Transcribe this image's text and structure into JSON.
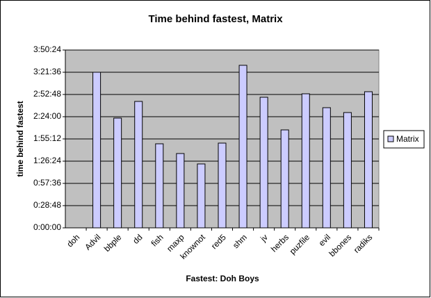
{
  "chart_data": {
    "type": "bar",
    "title": "Time behind fastest, Matrix",
    "x_label": "Fastest: Doh Boys",
    "y_label": "time behind fastest",
    "categories": [
      "doh",
      "Advil",
      "bbple",
      "dd",
      "fish",
      "maxp",
      "knownot",
      "red5",
      "shm",
      "jv",
      "herbs",
      "puzfile",
      "evil",
      "bbones",
      "radiks"
    ],
    "series": [
      {
        "name": "Matrix",
        "color": "#ccccff",
        "values": [
          0,
          12096,
          8532,
          9828,
          6534,
          5778,
          4968,
          6588,
          12636,
          10152,
          7614,
          10422,
          9342,
          8964,
          10584
        ]
      }
    ],
    "ylim": [
      0,
      13824
    ],
    "yticks": [
      {
        "value": 0,
        "label": "0:00:00"
      },
      {
        "value": 1728,
        "label": "0:28:48"
      },
      {
        "value": 3456,
        "label": "0:57:36"
      },
      {
        "value": 5184,
        "label": "1:26:24"
      },
      {
        "value": 6912,
        "label": "1:55:12"
      },
      {
        "value": 8640,
        "label": "2:24:00"
      },
      {
        "value": 10368,
        "label": "2:52:48"
      },
      {
        "value": 12096,
        "label": "3:21:36"
      },
      {
        "value": 13824,
        "label": "3:50:24"
      }
    ],
    "grid": true,
    "legend": "right"
  }
}
